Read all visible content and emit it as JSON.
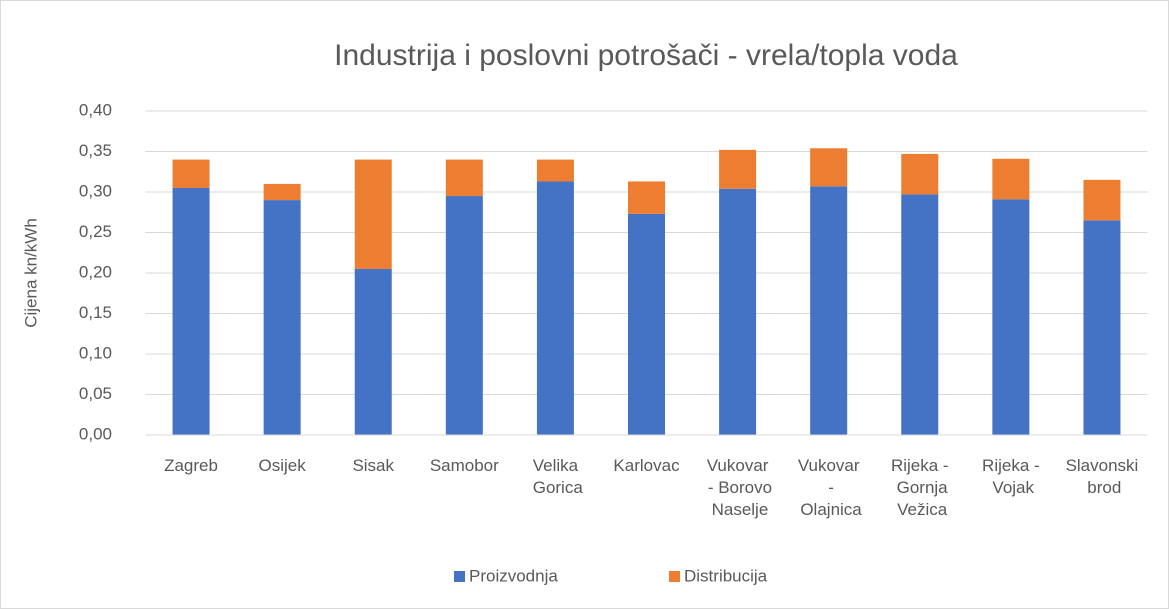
{
  "chart_data": {
    "type": "stacked_bar",
    "title": "Industrija i poslovni potrošači - vrela/topla voda",
    "y_label": "Cijena kn/kWh",
    "categories": [
      "Zagreb",
      "Osijek",
      "Sisak",
      "Samobor",
      "Velika Gorica",
      "Karlovac",
      "Vukovar - Borovo Naselje",
      "Vukovar - Olajnica",
      "Rijeka - Gornja Vežica",
      "Rijeka - Vojak",
      "Slavonski brod"
    ],
    "series": [
      {
        "name": "Proizvodnja",
        "color": "#4472c4",
        "values": [
          0.305,
          0.29,
          0.205,
          0.295,
          0.313,
          0.273,
          0.304,
          0.307,
          0.297,
          0.291,
          0.265
        ]
      },
      {
        "name": "Distribucija",
        "color": "#ed7d31",
        "values": [
          0.035,
          0.02,
          0.135,
          0.045,
          0.027,
          0.04,
          0.048,
          0.047,
          0.05,
          0.05,
          0.05
        ]
      }
    ],
    "ylim": [
      0,
      0.4
    ],
    "yticks": [
      {
        "value": 0,
        "label": "0,00"
      },
      {
        "value": 0.05,
        "label": "0,05"
      },
      {
        "value": 0.1,
        "label": "0,10"
      },
      {
        "value": 0.15,
        "label": "0,15"
      },
      {
        "value": 0.2,
        "label": "0,20"
      },
      {
        "value": 0.25,
        "label": "0,25"
      },
      {
        "value": 0.3,
        "label": "0,30"
      },
      {
        "value": 0.35,
        "label": "0,35"
      },
      {
        "value": 0.4,
        "label": "0,40"
      }
    ],
    "grid": true,
    "legend": "bottom"
  }
}
